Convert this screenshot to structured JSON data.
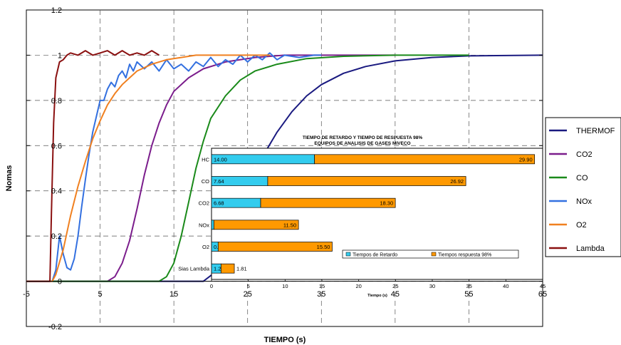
{
  "chart_data": [
    {
      "type": "line",
      "xlabel": "TIEMPO (s)",
      "ylabel": "Nomas",
      "xlim": [
        -5,
        65
      ],
      "ylim": [
        -0.2,
        1.2
      ],
      "x_ticks": [
        "-5",
        "5",
        "15",
        "25",
        "35",
        "45",
        "55",
        "65"
      ],
      "y_ticks": [
        "-0.2",
        "0",
        "0.2",
        "0.4",
        "0.6",
        "0.8",
        "1",
        "1.2"
      ],
      "grid": "dashed",
      "legend_position": "right",
      "series": [
        {
          "name": "THERMOF",
          "color": "#1a1a80",
          "points": [
            [
              -5,
              0
            ],
            [
              19,
              0
            ],
            [
              21,
              0.05
            ],
            [
              22.5,
              0.15
            ],
            [
              24,
              0.28
            ],
            [
              25.5,
              0.42
            ],
            [
              27,
              0.55
            ],
            [
              29,
              0.66
            ],
            [
              31,
              0.75
            ],
            [
              33,
              0.82
            ],
            [
              35,
              0.87
            ],
            [
              38,
              0.92
            ],
            [
              41,
              0.95
            ],
            [
              45,
              0.975
            ],
            [
              50,
              0.99
            ],
            [
              55,
              0.997
            ],
            [
              65,
              1.0
            ]
          ]
        },
        {
          "name": "CO2",
          "color": "#7b1d8c",
          "points": [
            [
              -5,
              0
            ],
            [
              6,
              0
            ],
            [
              7,
              0.02
            ],
            [
              8,
              0.08
            ],
            [
              9,
              0.18
            ],
            [
              10,
              0.32
            ],
            [
              11,
              0.47
            ],
            [
              12,
              0.6
            ],
            [
              13,
              0.7
            ],
            [
              14,
              0.78
            ],
            [
              15,
              0.84
            ],
            [
              17,
              0.9
            ],
            [
              19,
              0.94
            ],
            [
              22,
              0.97
            ],
            [
              26,
              0.99
            ],
            [
              30,
              1.0
            ],
            [
              45,
              1.0
            ]
          ]
        },
        {
          "name": "CO",
          "color": "#1a8a1a",
          "points": [
            [
              -5,
              0
            ],
            [
              13,
              0
            ],
            [
              14,
              0.02
            ],
            [
              15,
              0.08
            ],
            [
              16,
              0.2
            ],
            [
              17,
              0.35
            ],
            [
              18,
              0.5
            ],
            [
              19,
              0.62
            ],
            [
              20,
              0.72
            ],
            [
              22,
              0.82
            ],
            [
              24,
              0.89
            ],
            [
              26,
              0.93
            ],
            [
              29,
              0.96
            ],
            [
              33,
              0.985
            ],
            [
              38,
              0.995
            ],
            [
              45,
              1.0
            ],
            [
              55,
              1.0
            ]
          ]
        },
        {
          "name": "NOx",
          "color": "#3370e0",
          "points": [
            [
              -5,
              0
            ],
            [
              -1.5,
              0
            ],
            [
              -1,
              0.05
            ],
            [
              -0.5,
              0.2
            ],
            [
              0,
              0.12
            ],
            [
              0.5,
              0.06
            ],
            [
              1,
              0.05
            ],
            [
              1.5,
              0.1
            ],
            [
              2,
              0.2
            ],
            [
              2.5,
              0.33
            ],
            [
              3,
              0.45
            ],
            [
              3.5,
              0.56
            ],
            [
              4,
              0.66
            ],
            [
              4.5,
              0.73
            ],
            [
              5,
              0.8
            ],
            [
              5.5,
              0.8
            ],
            [
              6,
              0.85
            ],
            [
              6.5,
              0.88
            ],
            [
              7,
              0.86
            ],
            [
              7.5,
              0.91
            ],
            [
              8,
              0.93
            ],
            [
              8.5,
              0.9
            ],
            [
              9,
              0.96
            ],
            [
              9.5,
              0.93
            ],
            [
              10,
              0.97
            ],
            [
              11,
              0.94
            ],
            [
              12,
              0.97
            ],
            [
              13,
              0.93
            ],
            [
              14,
              0.98
            ],
            [
              15,
              0.94
            ],
            [
              16,
              0.96
            ],
            [
              17,
              0.93
            ],
            [
              18,
              0.97
            ],
            [
              19,
              0.95
            ],
            [
              20,
              0.99
            ],
            [
              21,
              0.95
            ],
            [
              22,
              0.98
            ],
            [
              23,
              0.96
            ],
            [
              24,
              1.0
            ],
            [
              25,
              0.97
            ],
            [
              26,
              1.0
            ],
            [
              27,
              0.98
            ],
            [
              28,
              1.01
            ],
            [
              29,
              0.98
            ],
            [
              30,
              1.0
            ],
            [
              32,
              0.99
            ],
            [
              34,
              1.0
            ],
            [
              35,
              1.0
            ]
          ]
        },
        {
          "name": "O2",
          "color": "#f08020",
          "points": [
            [
              -5,
              0
            ],
            [
              -1.5,
              0
            ],
            [
              -1,
              0.03
            ],
            [
              0,
              0.14
            ],
            [
              1,
              0.29
            ],
            [
              2,
              0.42
            ],
            [
              3,
              0.53
            ],
            [
              4,
              0.63
            ],
            [
              5,
              0.71
            ],
            [
              6,
              0.78
            ],
            [
              7,
              0.83
            ],
            [
              8,
              0.87
            ],
            [
              9,
              0.9
            ],
            [
              10,
              0.93
            ],
            [
              12,
              0.96
            ],
            [
              14,
              0.98
            ],
            [
              16,
              0.99
            ],
            [
              18,
              1.0
            ],
            [
              20,
              1.0
            ],
            [
              25,
              1.0
            ],
            [
              28,
              1.0
            ]
          ]
        },
        {
          "name": "Lambda",
          "color": "#8a1010",
          "points": [
            [
              -5,
              0
            ],
            [
              -1.8,
              0
            ],
            [
              -1.6,
              0.3
            ],
            [
              -1.3,
              0.7
            ],
            [
              -1,
              0.9
            ],
            [
              -0.5,
              0.97
            ],
            [
              0,
              0.98
            ],
            [
              0.5,
              1.0
            ],
            [
              1,
              1.01
            ],
            [
              2,
              1.0
            ],
            [
              3,
              1.02
            ],
            [
              4,
              1.0
            ],
            [
              5,
              1.01
            ],
            [
              6,
              1.02
            ],
            [
              7,
              1.0
            ],
            [
              8,
              1.02
            ],
            [
              9,
              1.0
            ],
            [
              10,
              1.01
            ],
            [
              11,
              1.0
            ],
            [
              12,
              1.02
            ],
            [
              13,
              1.0
            ]
          ]
        }
      ]
    },
    {
      "type": "bar",
      "orientation": "horizontal",
      "stacked": true,
      "title": "TIEMPO DE RETARDO Y TIEMPO DE RESPUESTA 98%",
      "subtitle": "EQUIPOS DE ANALISIS DE GASES MIVECO",
      "xlabel": "Tiempo (s)",
      "xlim": [
        0,
        45
      ],
      "x_ticks": [
        "0",
        "5",
        "10",
        "15",
        "20",
        "25",
        "30",
        "35",
        "40",
        "45"
      ],
      "categories": [
        "HC",
        "CO",
        "CO2",
        "NOx",
        "O2",
        "Sias Lambda"
      ],
      "series": [
        {
          "name": "Tiempos de Retardo",
          "color": "#33ccee",
          "values": [
            14.0,
            7.64,
            6.68,
            0.32,
            0.9,
            1.29
          ],
          "labels": [
            "14.00",
            "7.64",
            "6.68",
            "0.32",
            "0.90",
            "1.29"
          ]
        },
        {
          "name": "Tiempos respuesta 98%",
          "color": "#ff9900",
          "values": [
            29.9,
            26.92,
            18.3,
            11.5,
            15.5,
            1.81
          ],
          "labels": [
            "29.90",
            "26.92",
            "18.30",
            "11.50",
            "15.50",
            "1.81"
          ]
        }
      ]
    }
  ]
}
